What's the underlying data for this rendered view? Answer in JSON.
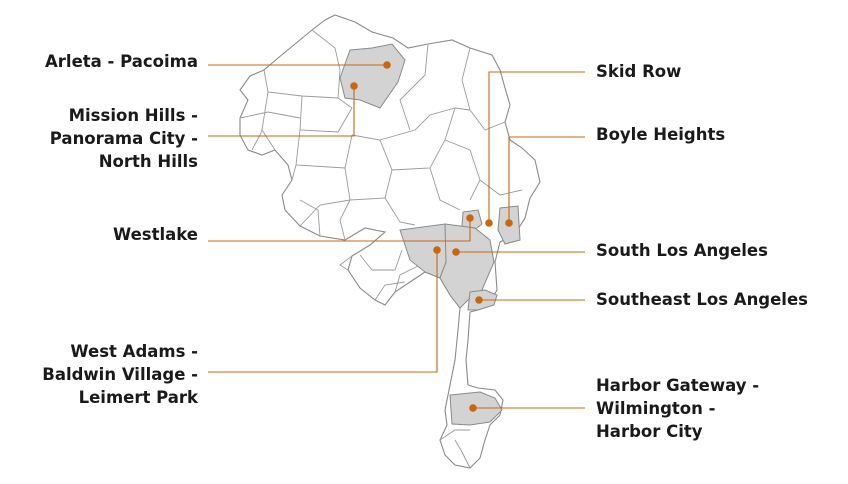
{
  "map": {
    "accent_color": "#c8670f",
    "highlight_fill": "#d3d3d3",
    "boundary_color": "#8a8a8a"
  },
  "labels": {
    "arleta_pacoima": {
      "lines": [
        "Arleta - Pacoima"
      ]
    },
    "mission_hills": {
      "lines": [
        "Mission Hills -",
        "Panorama City -",
        "North Hills"
      ]
    },
    "westlake": {
      "lines": [
        "Westlake"
      ]
    },
    "west_adams": {
      "lines": [
        "West Adams -",
        "Baldwin Village -",
        "Leimert Park"
      ]
    },
    "skid_row": {
      "lines": [
        "Skid Row"
      ]
    },
    "boyle_heights": {
      "lines": [
        "Boyle Heights"
      ]
    },
    "south_la": {
      "lines": [
        "South Los Angeles"
      ]
    },
    "southeast_la": {
      "lines": [
        "Southeast Los Angeles"
      ]
    },
    "harbor": {
      "lines": [
        "Harbor Gateway -",
        "Wilmington -",
        "Harbor City"
      ]
    }
  }
}
